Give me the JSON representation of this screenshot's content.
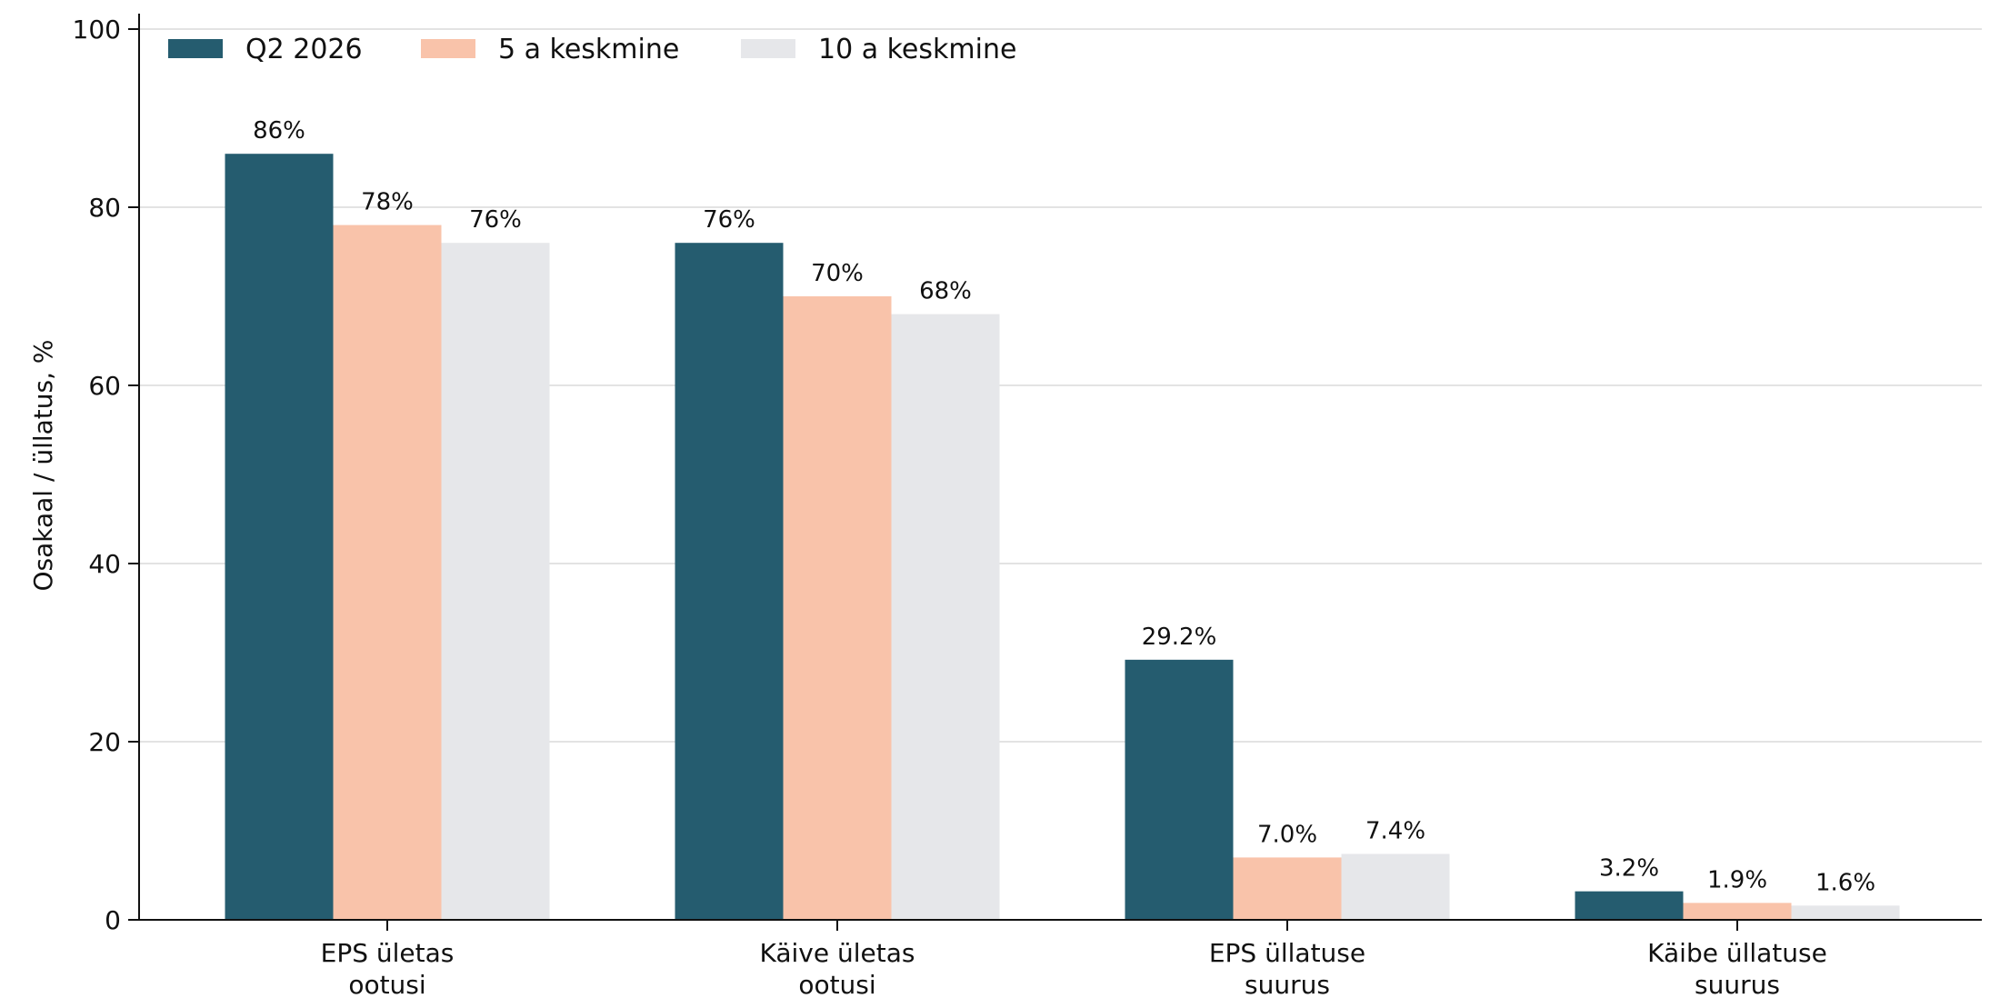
{
  "chart_data": {
    "type": "bar",
    "ylabel": "Osakaal / üllatus, %",
    "ylim": [
      0,
      100
    ],
    "yticks": [
      0,
      20,
      40,
      60,
      80,
      100
    ],
    "grid": "y",
    "legend_position": "top-left",
    "categories": [
      [
        "EPS ületas",
        "ootusi"
      ],
      [
        "Käive ületas",
        "ootusi"
      ],
      [
        "EPS üllatuse",
        "suurus"
      ],
      [
        "Käibe üllatuse",
        "suurus"
      ]
    ],
    "series": [
      {
        "name": "Q2 2026",
        "color": "#255c6f",
        "values": [
          86,
          76,
          29.2,
          3.2
        ],
        "labels": [
          "86%",
          "76%",
          "29.2%",
          "3.2%"
        ]
      },
      {
        "name": "5 a keskmine",
        "color": "#f9c3aa",
        "values": [
          78,
          70,
          7.0,
          1.9
        ],
        "labels": [
          "78%",
          "70%",
          "7.0%",
          "1.9%"
        ]
      },
      {
        "name": "10 a keskmine",
        "color": "#e6e7ea",
        "values": [
          76,
          68,
          7.4,
          1.6
        ],
        "labels": [
          "76%",
          "68%",
          "7.4%",
          "1.6%"
        ]
      }
    ]
  }
}
